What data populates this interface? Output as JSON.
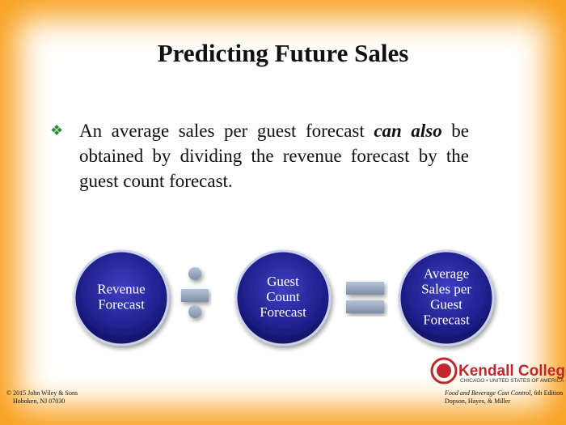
{
  "title": "Predicting Future Sales",
  "bullet": {
    "before": "An average sales per guest forecast ",
    "emphasis": "can also",
    "after": " be obtained by dividing the revenue forecast by the guest count forecast."
  },
  "circles": [
    [
      "Revenue",
      "Forecast"
    ],
    [
      "Guest",
      "Count",
      "Forecast"
    ],
    [
      "Average",
      "Sales per",
      "Guest",
      "Forecast"
    ]
  ],
  "logo": {
    "name": "Kendall College",
    "tagline": "CHICAGO • UNITED STATES OF AMERICA"
  },
  "footer_left": [
    "© 2015 John Wiley & Sons",
    "Hoboken, NJ  07030"
  ],
  "footer_right": {
    "book": "Food and Beverage Cost Control,",
    "edition": " 6th Edition",
    "authors": "Dopson, Hayes, & Miller"
  }
}
